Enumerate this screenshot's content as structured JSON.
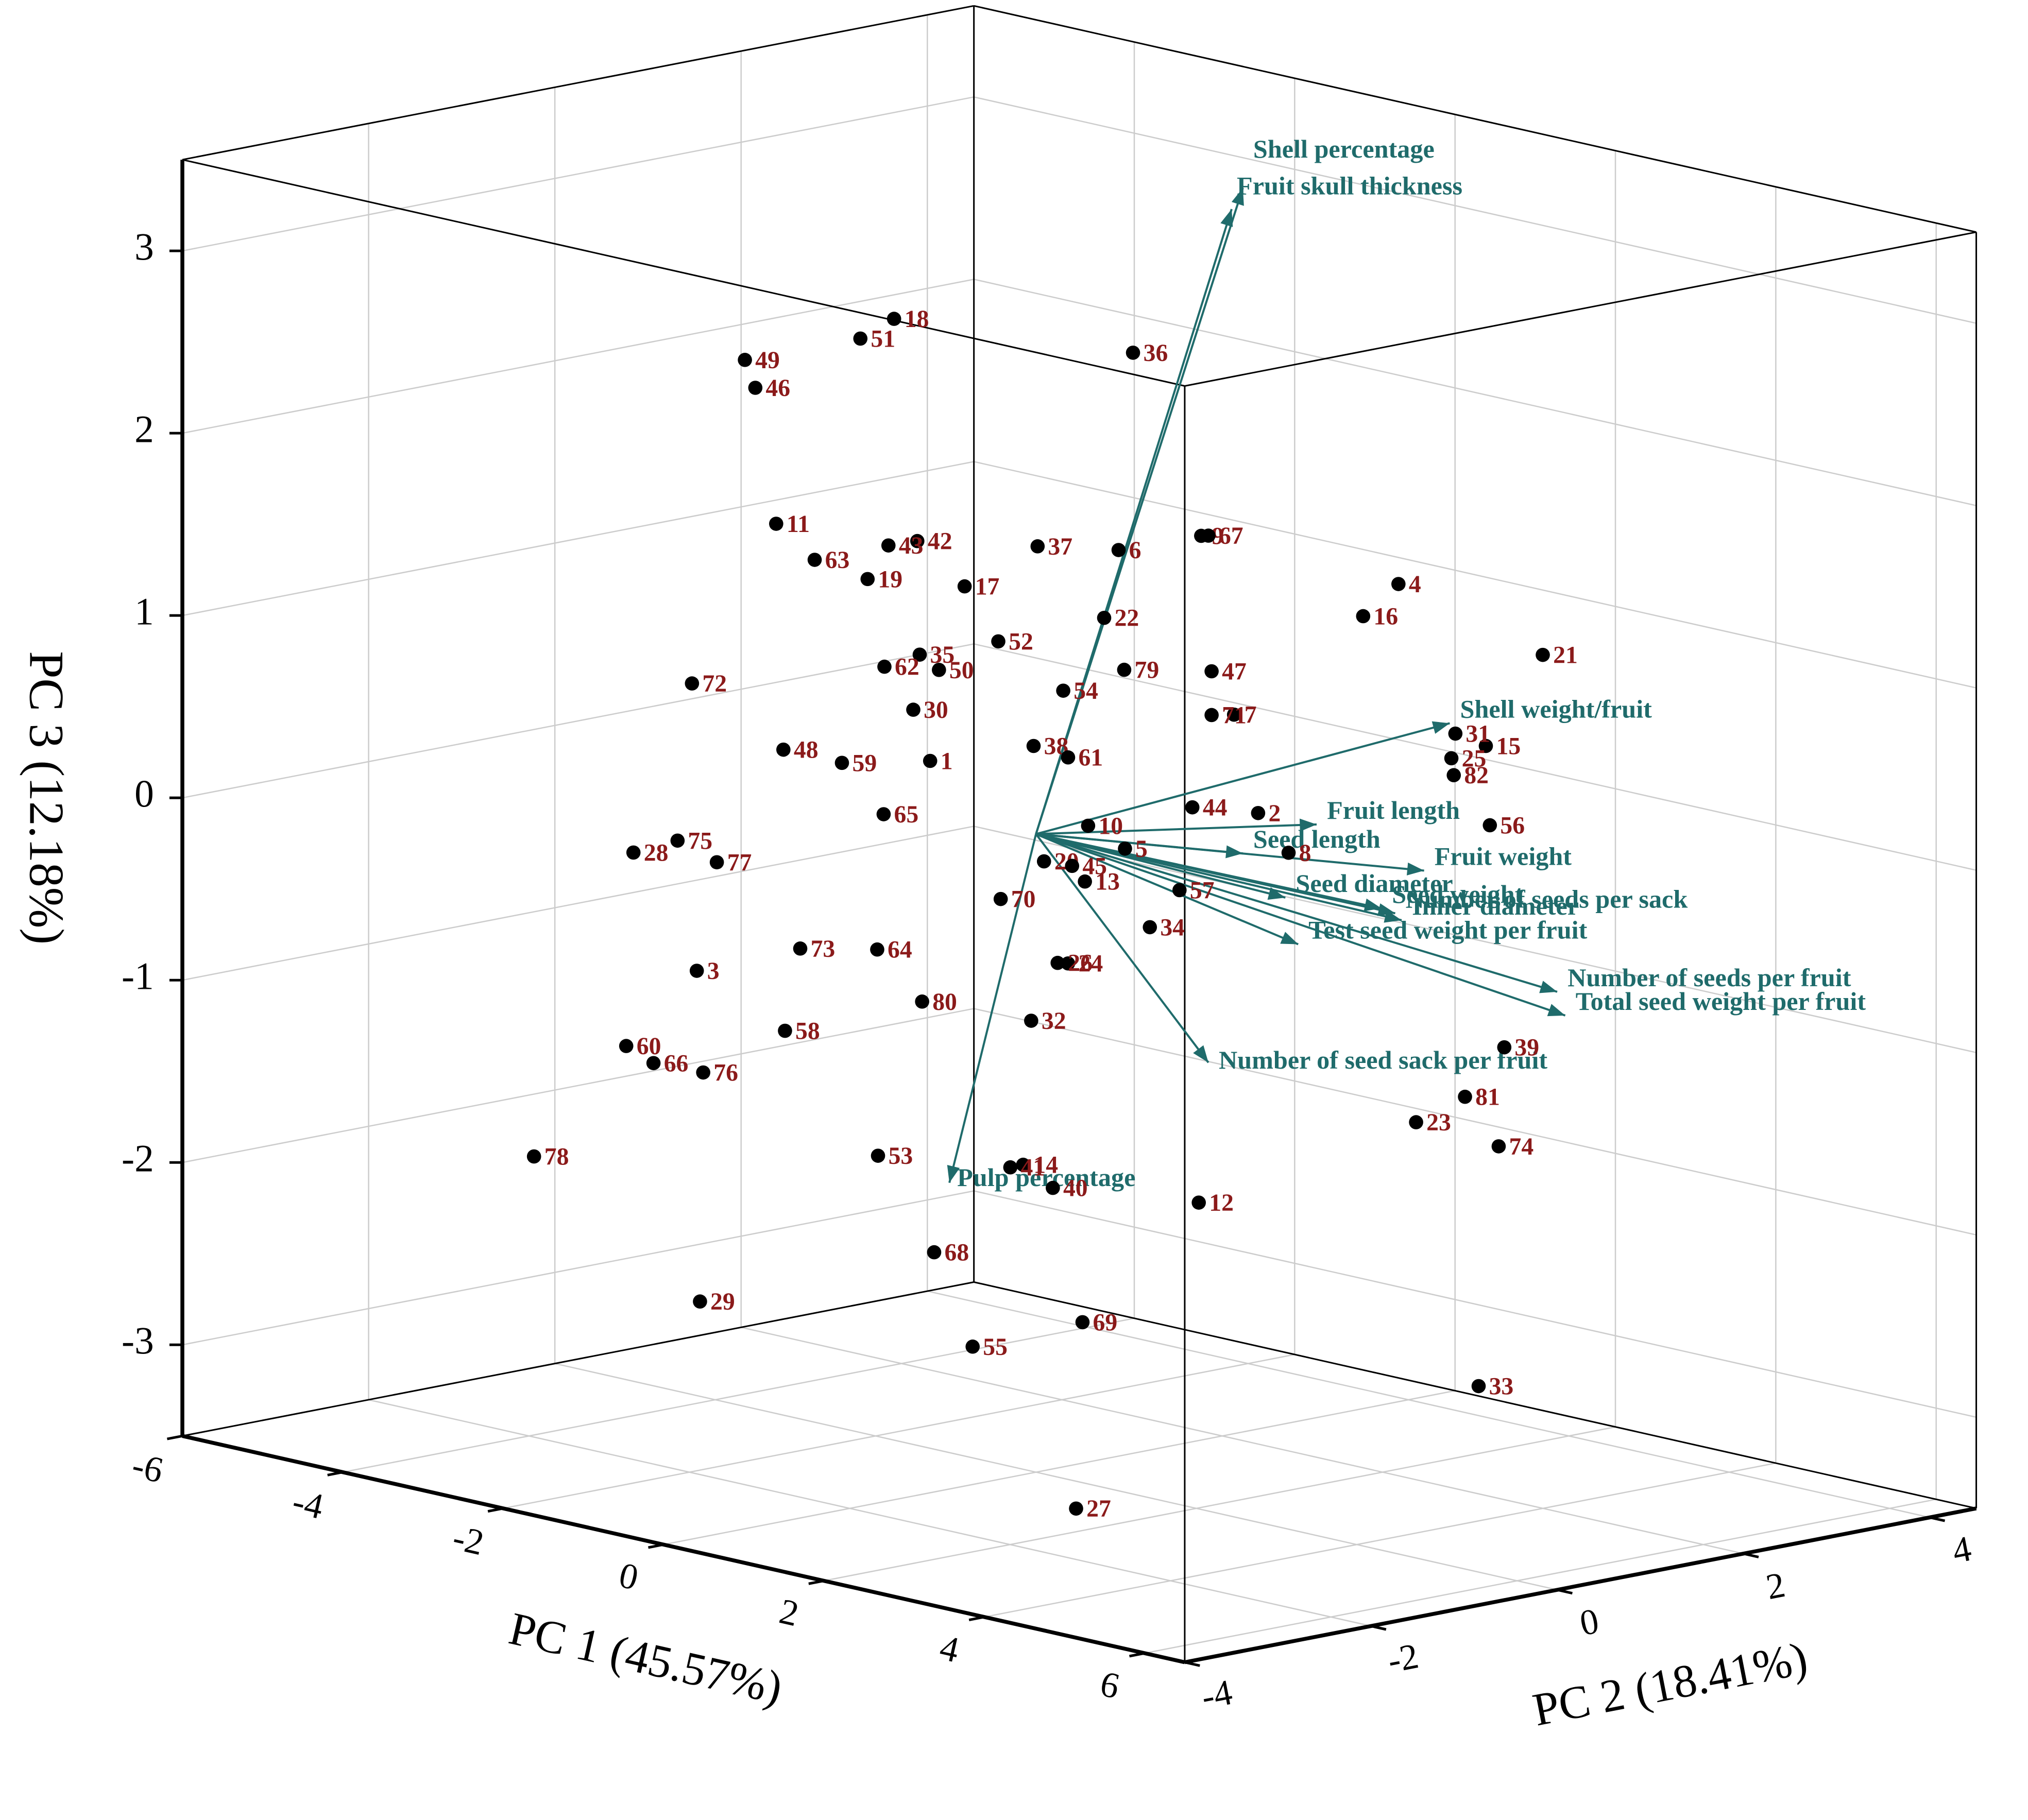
{
  "chart_data": {
    "type": "scatter3d",
    "xlabel": "PC 1 (45.57%)",
    "ylabel": "PC 2 (18.41%)",
    "zlabel": "PC 3 (12.18%)",
    "xlim": [
      -6,
      6.5
    ],
    "ylim": [
      -4,
      4.5
    ],
    "zlim": [
      -3.5,
      3.5
    ],
    "xticks": [
      -6,
      -4,
      -2,
      0,
      2,
      4,
      6
    ],
    "yticks": [
      -4,
      -2,
      0,
      2,
      4
    ],
    "zticks": [
      -3,
      -2,
      -1,
      0,
      1,
      2,
      3
    ],
    "grid": true,
    "points": {
      "color": "#000000",
      "label_color": "#8b1a1a",
      "labels": [
        "1",
        "2",
        "3",
        "4",
        "5",
        "6",
        "7",
        "8",
        "9",
        "10",
        "11",
        "12",
        "13",
        "14",
        "15",
        "16",
        "17",
        "18",
        "19",
        "20",
        "21",
        "22",
        "23",
        "24",
        "25",
        "26",
        "27",
        "28",
        "29",
        "30",
        "31",
        "32",
        "33",
        "34",
        "35",
        "36",
        "37",
        "38",
        "39",
        "40",
        "41",
        "42",
        "43",
        "44",
        "45",
        "46",
        "47",
        "48",
        "49",
        "50",
        "51",
        "52",
        "53",
        "54",
        "55",
        "56",
        "57",
        "58",
        "59",
        "60",
        "61",
        "62",
        "63",
        "64",
        "65",
        "66",
        "67",
        "68",
        "69",
        "70",
        "71",
        "72",
        "73",
        "74",
        "75",
        "76",
        "77",
        "78",
        "79",
        "80",
        "81",
        "82"
      ],
      "x": [
        -1.32,
        2.77,
        -4.23,
        4.52,
        1.11,
        1.03,
        2.47,
        3.15,
        2.06,
        0.65,
        -3.24,
        2.03,
        0.61,
        -0.16,
        5.61,
        4.08,
        -0.89,
        -1.77,
        -2.1,
        0.1,
        6.32,
        0.85,
        4.74,
        0.4,
        5.18,
        0.27,
        0.5,
        -5.02,
        -4.19,
        -1.53,
        5.23,
        -0.06,
        5.52,
        1.42,
        -1.45,
        1.21,
        0.02,
        -0.03,
        5.84,
        0.21,
        -0.32,
        -1.48,
        -1.84,
        1.95,
        0.45,
        -3.5,
        2.19,
        -3.15,
        -3.63,
        -1.21,
        -2.19,
        -0.47,
        -1.97,
        0.34,
        -0.79,
        5.66,
        1.79,
        -3.13,
        -2.42,
        -5.11,
        0.4,
        -1.89,
        -2.76,
        -1.98,
        -1.9,
        -4.77,
        2.15,
        -1.27,
        0.58,
        -0.44,
        2.19,
        -4.29,
        -2.94,
        5.77,
        -4.47,
        -4.15,
        -3.98,
        -6.26,
        1.1,
        -1.42,
        5.35,
        5.21
      ],
      "y": [
        0,
        0,
        0,
        0,
        0,
        0,
        0,
        0,
        0,
        0,
        0,
        0,
        0,
        0,
        0,
        0,
        0,
        0,
        0,
        0,
        0,
        0,
        0,
        0,
        0,
        0,
        0,
        0,
        0,
        0,
        0,
        0,
        0,
        0,
        0,
        0,
        0,
        0,
        0,
        0,
        0,
        0,
        0,
        0,
        0,
        0,
        0,
        0,
        0,
        0,
        0,
        0,
        0,
        0,
        0,
        0,
        0,
        0,
        0,
        0,
        0,
        0,
        0,
        0,
        0,
        0,
        0,
        0,
        0,
        0,
        0,
        0,
        0,
        0,
        0,
        0,
        0,
        0,
        0,
        0,
        0,
        0
      ],
      "z": [
        0.27,
        0.39,
        -1.17,
        1.82,
        0.03,
        1.66,
        0.9,
        0.21,
        1.84,
        0.11,
        1.38,
        -1.82,
        -0.2,
        -1.83,
        1.04,
        1.6,
        1.27,
        2.65,
        1.19,
        -0.14,
        1.61,
        1.27,
        -1.11,
        -0.67,
        0.93,
        -0.68,
        -3.65,
        -0.6,
        -2.98,
        0.53,
        1.07,
        -1.03,
        -2.48,
        -0.37,
        0.84,
        2.76,
        1.58,
        0.48,
        -0.59,
        -1.92,
        -1.86,
        1.46,
        1.4,
        0.34,
        -0.13,
        2.1,
        1.11,
        0.15,
        2.24,
        0.78,
        2.5,
        1.01,
        -1.96,
        0.82,
        -2.89,
        0.61,
        -0.13,
        -1.39,
        0.15,
        -1.67,
        0.46,
        0.73,
        1.23,
        -0.83,
        -0.08,
        -1.73,
        1.85,
        -2.42,
        -2.62,
        -0.4,
        0.87,
        0.4,
        -0.92,
        -1.14,
        -0.48,
        -1.72,
        -0.55,
        -2.39,
        1.01,
        -1.06,
        -0.91,
        0.84
      ]
    },
    "loadings": {
      "color": "#1f6b6b",
      "names": [
        "Shell percentage",
        "Fruit skull thickness",
        "Shell weight/fruit",
        "Fruit length",
        "Seed length",
        "Fruit weight",
        "Seed diameter",
        "Seed weight",
        "Number of seeds per sack",
        "Inner diameter",
        "Test seed weight per fruit",
        "Number of seeds per fruit",
        "Total seed weight per fruit",
        "Number of seed sack per fruit",
        "Pulp percentage"
      ],
      "x": [
        2.58,
        2.44,
        5.16,
        3.5,
        2.58,
        4.84,
        3.11,
        4.31,
        4.48,
        4.56,
        3.27,
        6.5,
        6.6,
        2.15,
        -1.08
      ],
      "y": [
        0,
        0,
        0,
        0,
        0,
        0,
        0,
        0,
        0,
        0,
        0,
        0,
        0,
        0,
        0
      ],
      "z": [
        3.8,
        3.67,
        1.12,
        0.4,
        0.15,
        0.28,
        -0.04,
        0.02,
        0.01,
        -0.02,
        -0.28,
        -0.22,
        -0.34,
        -1.04,
        -2.02
      ]
    }
  }
}
